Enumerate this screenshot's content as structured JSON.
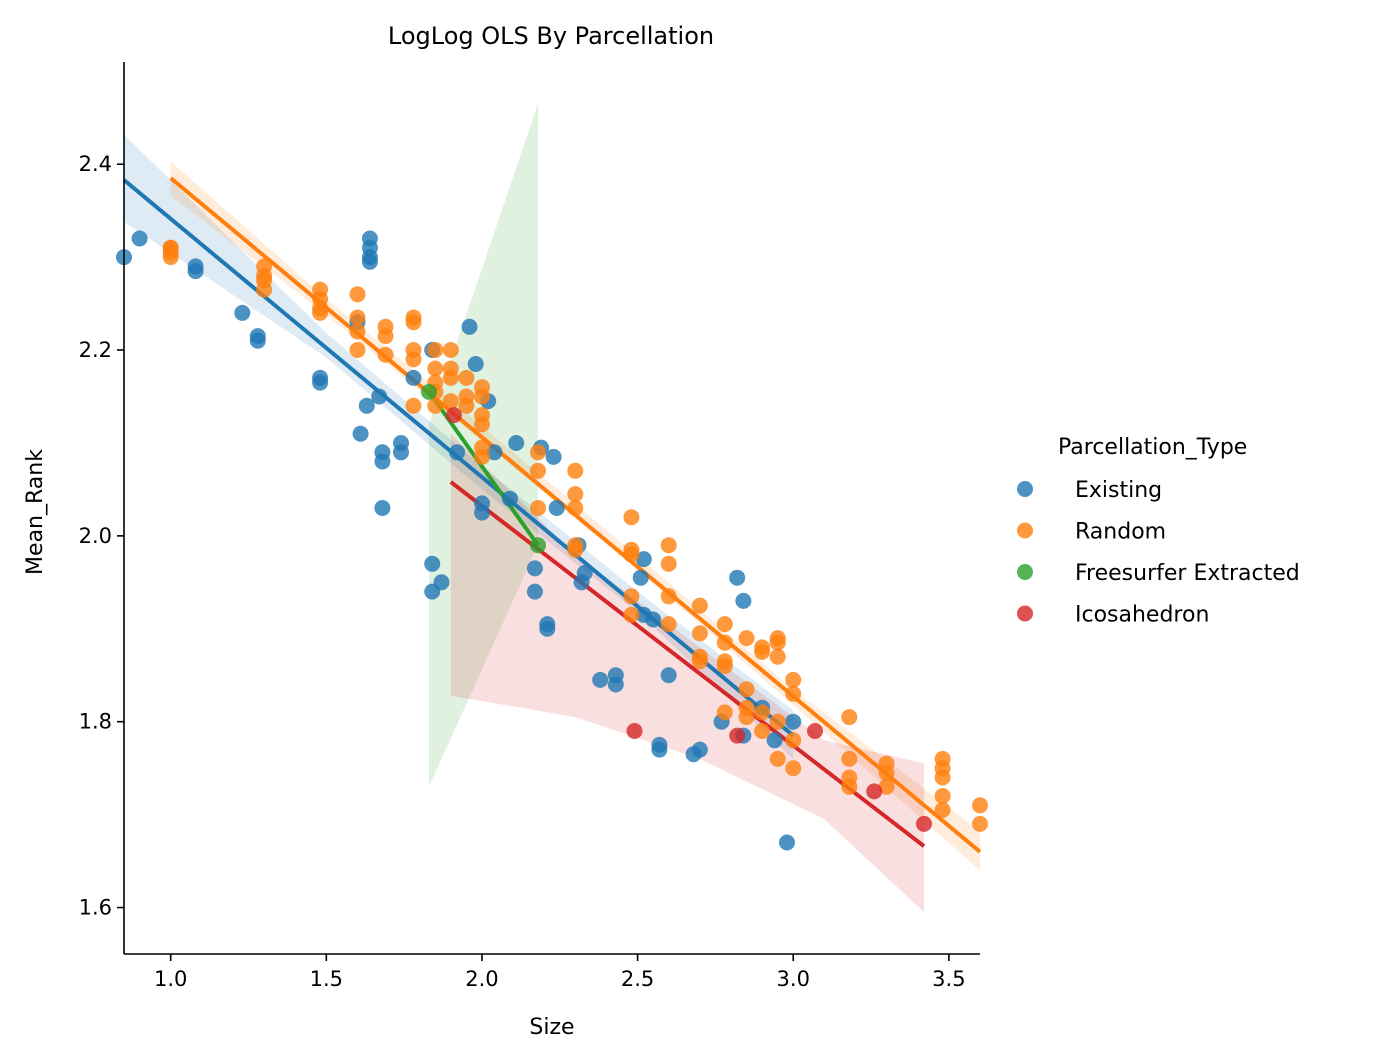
{
  "chart_data": {
    "type": "scatter",
    "title": "LogLog OLS By Parcellation",
    "xlabel": "Size",
    "ylabel": "Mean_Rank",
    "xlim": [
      0.85,
      3.6
    ],
    "ylim": [
      1.55,
      2.51
    ],
    "xticks": [
      1.0,
      1.5,
      2.0,
      2.5,
      3.0,
      3.5
    ],
    "yticks": [
      1.6,
      1.8,
      2.0,
      2.2,
      2.4
    ],
    "xtick_labels": [
      "1.0",
      "1.5",
      "2.0",
      "2.5",
      "3.0",
      "3.5"
    ],
    "ytick_labels": [
      "1.6",
      "1.8",
      "2.0",
      "2.2",
      "2.4"
    ],
    "grid": false,
    "legend": {
      "title": "Parcellation_Type",
      "placement": "right"
    },
    "series": [
      {
        "name": "Existing",
        "color": "#1f77b4",
        "points": [
          [
            0.85,
            2.3
          ],
          [
            0.9,
            2.32
          ],
          [
            1.08,
            2.29
          ],
          [
            1.08,
            2.285
          ],
          [
            1.23,
            2.24
          ],
          [
            1.28,
            2.21
          ],
          [
            1.28,
            2.215
          ],
          [
            1.48,
            2.17
          ],
          [
            1.48,
            2.165
          ],
          [
            1.6,
            2.23
          ],
          [
            1.61,
            2.11
          ],
          [
            1.63,
            2.14
          ],
          [
            1.64,
            2.32
          ],
          [
            1.64,
            2.31
          ],
          [
            1.64,
            2.3
          ],
          [
            1.64,
            2.295
          ],
          [
            1.67,
            2.15
          ],
          [
            1.68,
            2.09
          ],
          [
            1.68,
            2.08
          ],
          [
            1.68,
            2.03
          ],
          [
            1.74,
            2.1
          ],
          [
            1.74,
            2.09
          ],
          [
            1.78,
            2.17
          ],
          [
            1.84,
            2.2
          ],
          [
            1.84,
            1.97
          ],
          [
            1.84,
            1.94
          ],
          [
            1.87,
            1.95
          ],
          [
            1.92,
            2.09
          ],
          [
            1.96,
            2.225
          ],
          [
            1.98,
            2.185
          ],
          [
            2.0,
            2.025
          ],
          [
            2.0,
            2.035
          ],
          [
            2.02,
            2.145
          ],
          [
            2.04,
            2.09
          ],
          [
            2.09,
            2.04
          ],
          [
            2.11,
            2.1
          ],
          [
            2.17,
            1.965
          ],
          [
            2.17,
            1.94
          ],
          [
            2.19,
            2.095
          ],
          [
            2.21,
            1.905
          ],
          [
            2.21,
            1.9
          ],
          [
            2.23,
            2.085
          ],
          [
            2.24,
            2.03
          ],
          [
            2.31,
            1.99
          ],
          [
            2.32,
            1.95
          ],
          [
            2.33,
            1.96
          ],
          [
            2.38,
            1.845
          ],
          [
            2.43,
            1.85
          ],
          [
            2.43,
            1.84
          ],
          [
            2.51,
            1.955
          ],
          [
            2.52,
            1.975
          ],
          [
            2.52,
            1.915
          ],
          [
            2.55,
            1.91
          ],
          [
            2.57,
            1.775
          ],
          [
            2.57,
            1.77
          ],
          [
            2.6,
            1.85
          ],
          [
            2.68,
            1.765
          ],
          [
            2.7,
            1.77
          ],
          [
            2.77,
            1.8
          ],
          [
            2.82,
            1.955
          ],
          [
            2.84,
            1.93
          ],
          [
            2.84,
            1.785
          ],
          [
            2.9,
            1.815
          ],
          [
            2.94,
            1.78
          ],
          [
            2.98,
            1.67
          ],
          [
            3.0,
            1.8
          ]
        ],
        "fit": [
          [
            0.85,
            2.383
          ],
          [
            3.0,
            1.785
          ]
        ],
        "ci_upper": [
          [
            0.85,
            2.432
          ],
          [
            1.5,
            2.218
          ],
          [
            2.0,
            2.075
          ],
          [
            2.5,
            1.94
          ],
          [
            3.0,
            1.812
          ]
        ],
        "ci_lower": [
          [
            0.85,
            2.338
          ],
          [
            1.5,
            2.192
          ],
          [
            2.0,
            2.05
          ],
          [
            2.5,
            1.918
          ],
          [
            3.0,
            1.76
          ]
        ]
      },
      {
        "name": "Random",
        "color": "#ff7f0e",
        "points": [
          [
            1.0,
            2.31
          ],
          [
            1.0,
            2.3
          ],
          [
            1.0,
            2.305
          ],
          [
            1.0,
            2.31
          ],
          [
            1.3,
            2.29
          ],
          [
            1.3,
            2.28
          ],
          [
            1.3,
            2.275
          ],
          [
            1.3,
            2.265
          ],
          [
            1.48,
            2.265
          ],
          [
            1.48,
            2.255
          ],
          [
            1.48,
            2.245
          ],
          [
            1.48,
            2.24
          ],
          [
            1.6,
            2.26
          ],
          [
            1.6,
            2.235
          ],
          [
            1.6,
            2.22
          ],
          [
            1.6,
            2.2
          ],
          [
            1.69,
            2.225
          ],
          [
            1.69,
            2.215
          ],
          [
            1.69,
            2.195
          ],
          [
            1.78,
            2.235
          ],
          [
            1.78,
            2.23
          ],
          [
            1.78,
            2.2
          ],
          [
            1.78,
            2.19
          ],
          [
            1.78,
            2.14
          ],
          [
            1.85,
            2.2
          ],
          [
            1.85,
            2.18
          ],
          [
            1.85,
            2.165
          ],
          [
            1.85,
            2.155
          ],
          [
            1.85,
            2.14
          ],
          [
            1.9,
            2.2
          ],
          [
            1.9,
            2.18
          ],
          [
            1.9,
            2.17
          ],
          [
            1.9,
            2.145
          ],
          [
            1.95,
            2.17
          ],
          [
            1.95,
            2.15
          ],
          [
            1.95,
            2.14
          ],
          [
            2.0,
            2.16
          ],
          [
            2.0,
            2.15
          ],
          [
            2.0,
            2.13
          ],
          [
            2.0,
            2.12
          ],
          [
            2.0,
            2.095
          ],
          [
            2.0,
            2.085
          ],
          [
            2.18,
            2.09
          ],
          [
            2.18,
            2.07
          ],
          [
            2.18,
            2.03
          ],
          [
            2.3,
            2.07
          ],
          [
            2.3,
            2.045
          ],
          [
            2.3,
            2.03
          ],
          [
            2.3,
            1.99
          ],
          [
            2.3,
            1.985
          ],
          [
            2.48,
            2.02
          ],
          [
            2.48,
            1.985
          ],
          [
            2.48,
            1.98
          ],
          [
            2.48,
            1.935
          ],
          [
            2.48,
            1.915
          ],
          [
            2.6,
            1.99
          ],
          [
            2.6,
            1.97
          ],
          [
            2.6,
            1.935
          ],
          [
            2.6,
            1.905
          ],
          [
            2.7,
            1.925
          ],
          [
            2.7,
            1.895
          ],
          [
            2.7,
            1.87
          ],
          [
            2.7,
            1.865
          ],
          [
            2.78,
            1.905
          ],
          [
            2.78,
            1.885
          ],
          [
            2.78,
            1.865
          ],
          [
            2.78,
            1.86
          ],
          [
            2.78,
            1.81
          ],
          [
            2.85,
            1.89
          ],
          [
            2.85,
            1.835
          ],
          [
            2.85,
            1.815
          ],
          [
            2.85,
            1.805
          ],
          [
            2.9,
            1.88
          ],
          [
            2.9,
            1.875
          ],
          [
            2.9,
            1.81
          ],
          [
            2.9,
            1.79
          ],
          [
            2.95,
            1.89
          ],
          [
            2.95,
            1.885
          ],
          [
            2.95,
            1.87
          ],
          [
            2.95,
            1.8
          ],
          [
            2.95,
            1.76
          ],
          [
            3.0,
            1.845
          ],
          [
            3.0,
            1.83
          ],
          [
            3.0,
            1.78
          ],
          [
            3.0,
            1.75
          ],
          [
            3.18,
            1.805
          ],
          [
            3.18,
            1.76
          ],
          [
            3.18,
            1.74
          ],
          [
            3.18,
            1.73
          ],
          [
            3.3,
            1.755
          ],
          [
            3.3,
            1.745
          ],
          [
            3.3,
            1.73
          ],
          [
            3.48,
            1.76
          ],
          [
            3.48,
            1.75
          ],
          [
            3.48,
            1.74
          ],
          [
            3.48,
            1.72
          ],
          [
            3.48,
            1.705
          ],
          [
            3.6,
            1.71
          ],
          [
            3.6,
            1.69
          ]
        ],
        "fit": [
          [
            1.0,
            2.385
          ],
          [
            3.6,
            1.66
          ]
        ],
        "ci_upper": [
          [
            1.0,
            2.403
          ],
          [
            1.5,
            2.255
          ],
          [
            2.0,
            2.118
          ],
          [
            2.5,
            1.978
          ],
          [
            3.0,
            1.835
          ],
          [
            3.6,
            1.682
          ]
        ],
        "ci_lower": [
          [
            1.0,
            2.366
          ],
          [
            1.5,
            2.238
          ],
          [
            2.0,
            2.102
          ],
          [
            2.5,
            1.963
          ],
          [
            3.0,
            1.818
          ],
          [
            3.6,
            1.64
          ]
        ]
      },
      {
        "name": "Freesurfer Extracted",
        "color": "#2ca02c",
        "points": [
          [
            1.83,
            2.155
          ],
          [
            2.18,
            1.99
          ]
        ],
        "fit": [
          [
            1.83,
            2.155
          ],
          [
            2.18,
            1.99
          ]
        ],
        "ci_upper": [
          [
            1.83,
            2.12
          ],
          [
            2.18,
            2.465
          ]
        ],
        "ci_lower": [
          [
            1.83,
            1.73
          ],
          [
            2.18,
            1.99
          ]
        ]
      },
      {
        "name": "Icosahedron",
        "color": "#d62728",
        "points": [
          [
            1.91,
            2.13
          ],
          [
            2.49,
            1.79
          ],
          [
            2.82,
            1.785
          ],
          [
            3.07,
            1.79
          ],
          [
            3.26,
            1.725
          ],
          [
            3.42,
            1.69
          ]
        ],
        "fit": [
          [
            1.9,
            2.058
          ],
          [
            3.42,
            1.666
          ]
        ],
        "ci_upper": [
          [
            1.9,
            2.11
          ],
          [
            2.3,
            1.98
          ],
          [
            2.7,
            1.88
          ],
          [
            3.1,
            1.78
          ],
          [
            3.42,
            1.755
          ]
        ],
        "ci_lower": [
          [
            1.9,
            1.828
          ],
          [
            2.3,
            1.805
          ],
          [
            2.7,
            1.76
          ],
          [
            3.1,
            1.695
          ],
          [
            3.42,
            1.595
          ]
        ]
      }
    ]
  }
}
